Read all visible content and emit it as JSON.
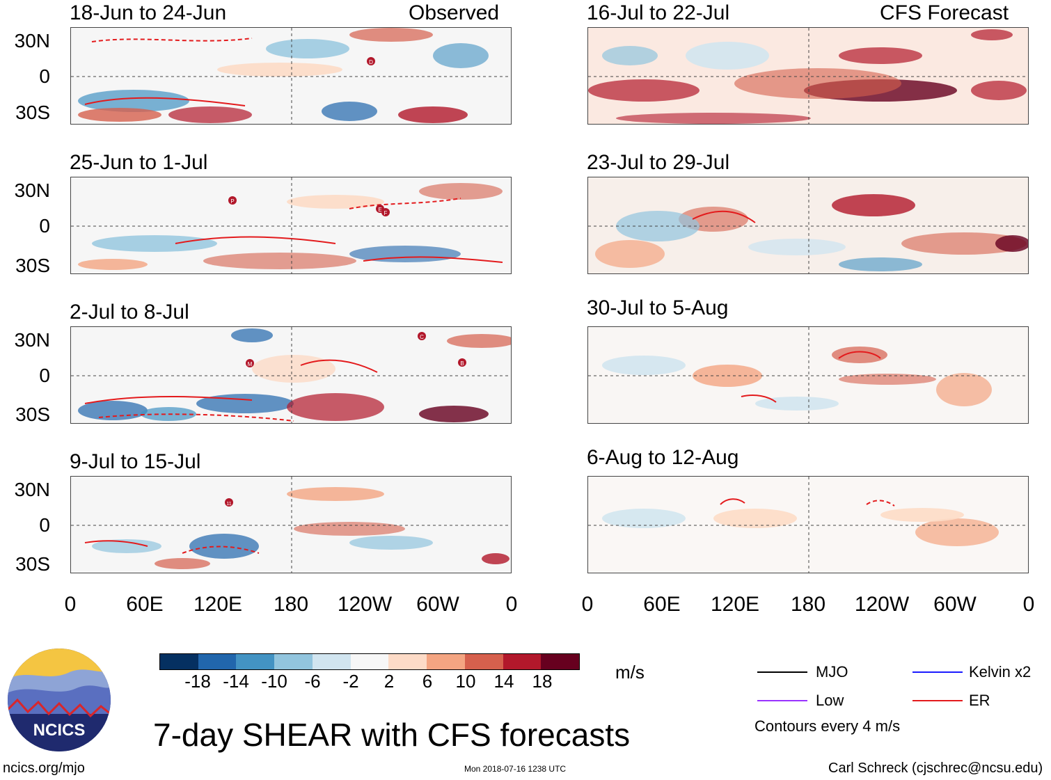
{
  "observed_heading": "Observed",
  "forecast_heading": "CFS Forecast",
  "left_panels": [
    {
      "title": "18-Jun to 24-Jun"
    },
    {
      "title": "25-Jun to 1-Jul"
    },
    {
      "title": "2-Jul to 8-Jul"
    },
    {
      "title": "9-Jul to 15-Jul"
    }
  ],
  "right_panels": [
    {
      "title": "16-Jul to 22-Jul"
    },
    {
      "title": "23-Jul to 29-Jul"
    },
    {
      "title": "30-Jul to 5-Aug"
    },
    {
      "title": "6-Aug to 12-Aug"
    }
  ],
  "lat_labels": [
    "30N",
    "0",
    "30S"
  ],
  "lon_labels": [
    "0",
    "60E",
    "120E",
    "180",
    "120W",
    "60W",
    "0"
  ],
  "colorbar": {
    "unit": "m/s",
    "labels": [
      "-18",
      "-14",
      "-10",
      "-6",
      "-2",
      "2",
      "6",
      "10",
      "14",
      "18"
    ],
    "colors": [
      "#053061",
      "#2166ac",
      "#4393c3",
      "#92c5de",
      "#d1e5f0",
      "#f7f7f7",
      "#fddbc7",
      "#f4a582",
      "#d6604d",
      "#b2182b",
      "#67001f"
    ]
  },
  "legend": {
    "items": [
      {
        "label": "MJO",
        "color": "#000000"
      },
      {
        "label": "Kelvin x2",
        "color": "#1a1aff"
      },
      {
        "label": "Low",
        "color": "#9933ff"
      },
      {
        "label": "ER",
        "color": "#e31a1c"
      }
    ],
    "note": "Contours every 4 m/s"
  },
  "logo_text": "NCICS",
  "main_title": "7-day SHEAR with CFS forecasts",
  "footer": {
    "left": "ncics.org/mjo",
    "center": "Mon 2018-07-16 1238 UTC",
    "right": "Carl Schreck (cjschrec@ncsu.edu)"
  },
  "storm_markers": [
    {
      "panel": "left-1",
      "label": "D"
    },
    {
      "panel": "left-2",
      "label": "P"
    },
    {
      "panel": "left-2",
      "label": "E"
    },
    {
      "panel": "left-2",
      "label": "F"
    },
    {
      "panel": "left-3",
      "label": "C"
    },
    {
      "panel": "left-3",
      "label": "M"
    },
    {
      "panel": "left-3",
      "label": "B"
    },
    {
      "panel": "left-4",
      "label": "11"
    }
  ]
}
